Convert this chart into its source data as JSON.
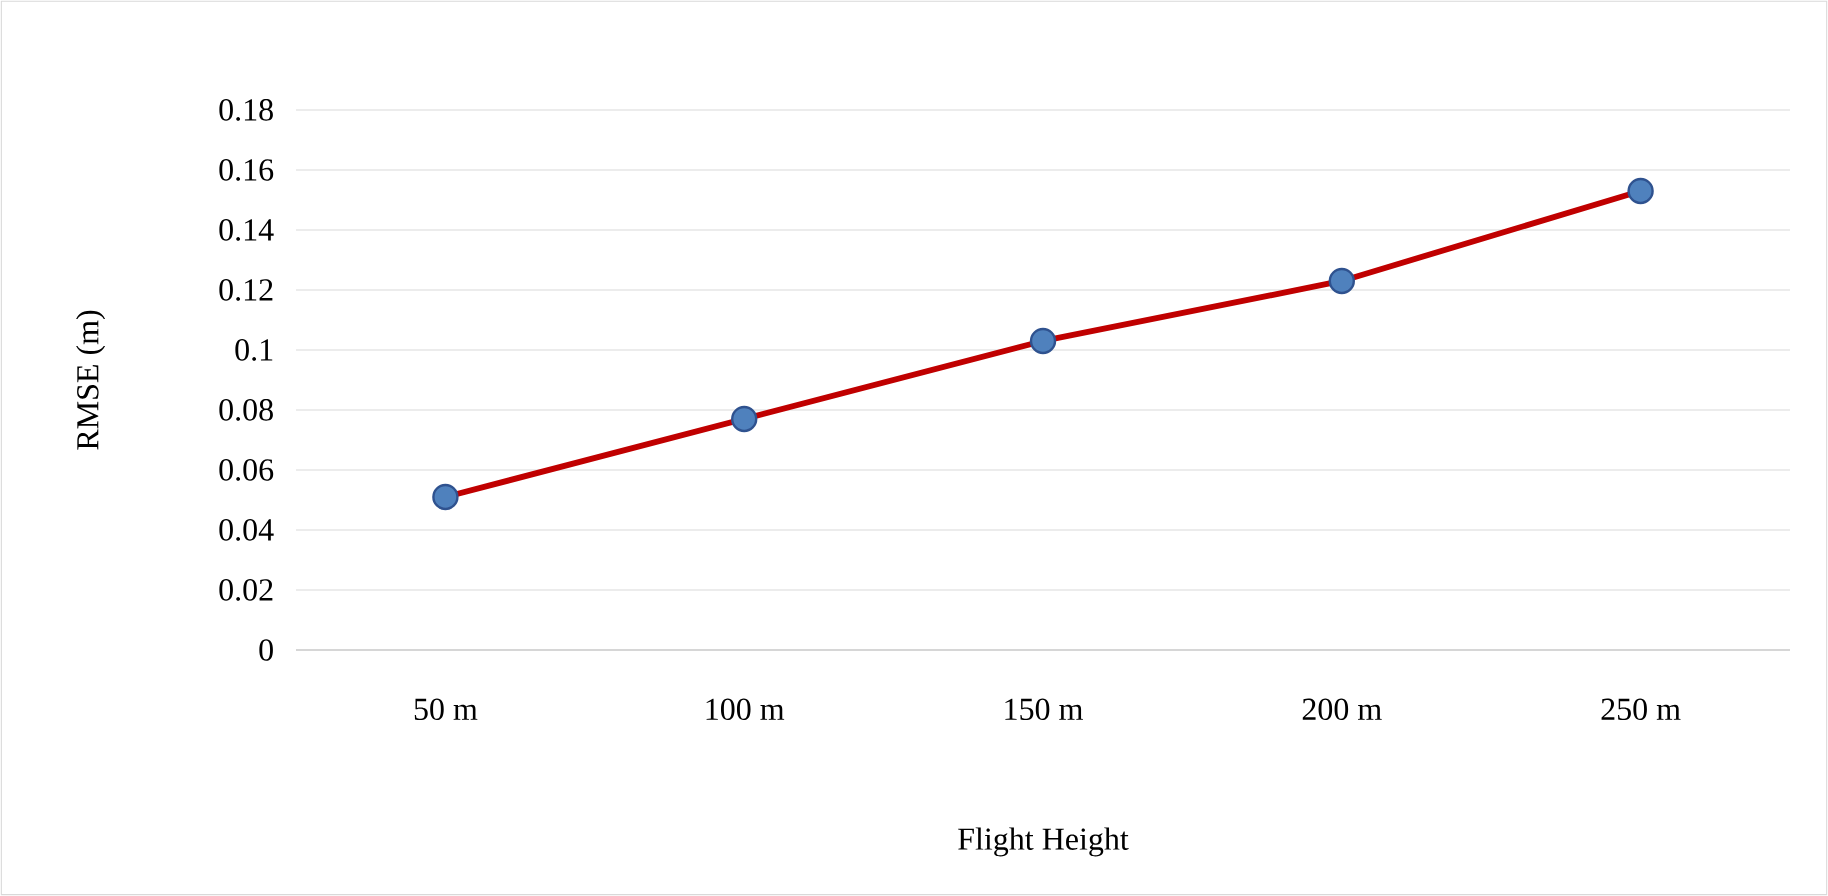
{
  "chart_data": {
    "type": "line",
    "xlabel": "Flight Height",
    "ylabel": "RMSE (m)",
    "categories": [
      "50 m",
      "100 m",
      "150 m",
      "200 m",
      "250 m"
    ],
    "series": [
      {
        "color": "#c00000",
        "values": [
          0.051,
          0.077,
          0.103,
          0.123,
          0.153
        ]
      }
    ],
    "ylim": [
      0,
      0.18
    ],
    "yticks": [
      0,
      0.02,
      0.04,
      0.06,
      0.08,
      0.1,
      0.12,
      0.14,
      0.16,
      0.18
    ],
    "grid": "y",
    "marker": "circle",
    "line_style": "solid"
  }
}
